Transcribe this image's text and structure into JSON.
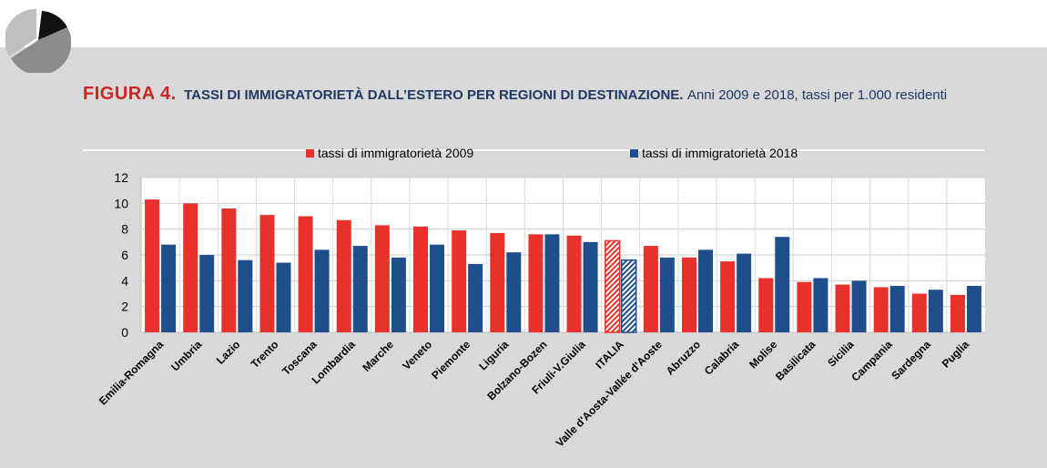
{
  "header": {
    "figure_label": "FIGURA 4.",
    "title": "TASSI DI IMMIGRATORIETÀ DALL’ESTERO PER REGIONI DI DESTINAZIONE.",
    "subtitle": "Anni 2009 e 2018, tassi per 1.000 residenti"
  },
  "colors": {
    "series_2009": "#e8312b",
    "series_2018": "#1f4e8c",
    "panel_bg": "#d9d9d9",
    "logo_dark": "#111111",
    "logo_grey": "#8c8c8c",
    "logo_light": "#bfbfbf"
  },
  "chart_data": {
    "type": "bar",
    "categories": [
      "Emilia-Romagna",
      "Umbria",
      "Lazio",
      "Trento",
      "Toscana",
      "Lombardia",
      "Marche",
      "Veneto",
      "Piemonte",
      "Liguria",
      "Bolzano-Bozen",
      "Friuli-V.Giulia",
      "ITALIA",
      "Valle d'Aosta-Vallée d'Aoste",
      "Abruzzo",
      "Calabria",
      "Molise",
      "Basilicata",
      "Sicilia",
      "Campania",
      "Sardegna",
      "Puglia"
    ],
    "series": [
      {
        "name": "tassi di immigratorietà 2009",
        "values": [
          10.3,
          10.0,
          9.6,
          9.1,
          9.0,
          8.7,
          8.3,
          8.2,
          7.9,
          7.7,
          7.6,
          7.5,
          7.1,
          6.7,
          5.8,
          5.5,
          4.2,
          3.9,
          3.7,
          3.5,
          3.0,
          2.9
        ]
      },
      {
        "name": "tassi di immigratorietà 2018",
        "values": [
          6.8,
          6.0,
          5.6,
          5.4,
          6.4,
          6.7,
          5.8,
          6.8,
          5.3,
          6.2,
          7.6,
          7.0,
          5.6,
          5.8,
          6.4,
          6.1,
          7.4,
          4.2,
          4.0,
          3.6,
          3.3,
          3.6
        ]
      }
    ],
    "highlight_category": "ITALIA",
    "ylim": [
      0,
      12
    ],
    "yticks": [
      0,
      2,
      4,
      6,
      8,
      10,
      12
    ],
    "grid": true,
    "legend_position": "top"
  }
}
